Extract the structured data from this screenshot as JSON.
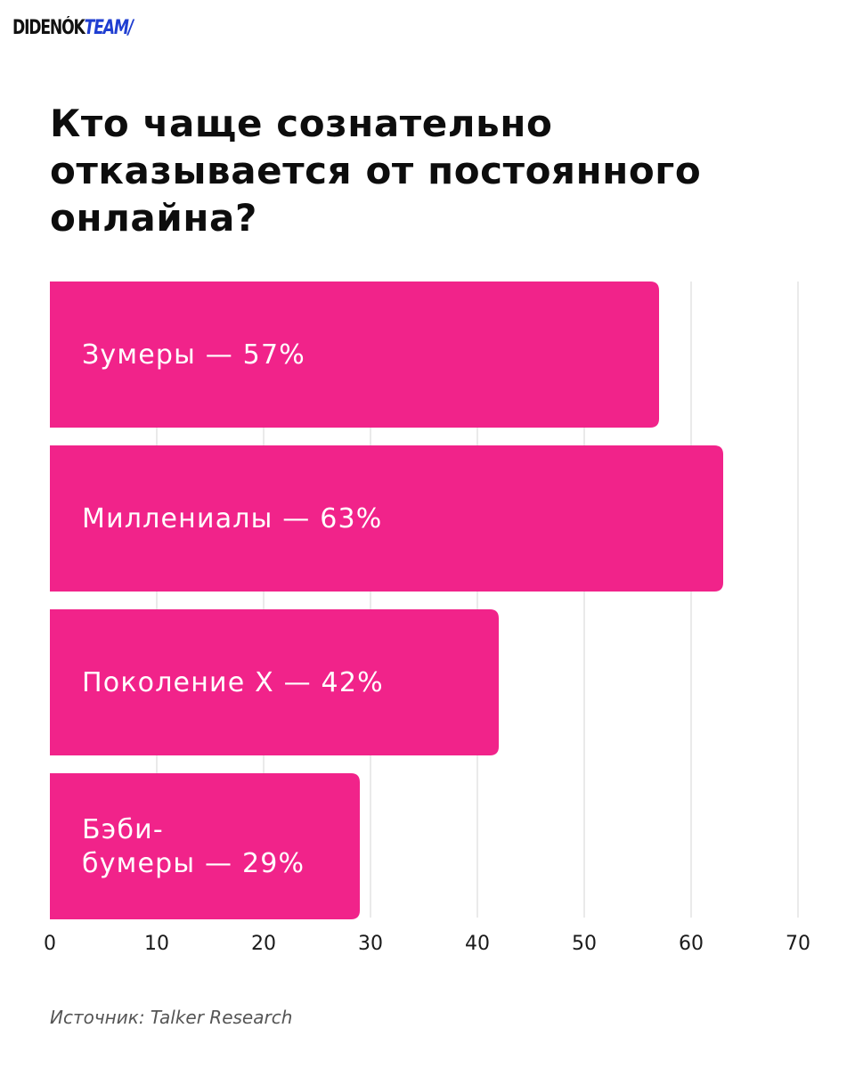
{
  "logo": {
    "part1": "DIDENÓK",
    "part2": "TEAM/"
  },
  "source": "Источник: Talker Research",
  "chart_data": {
    "type": "bar",
    "orientation": "horizontal",
    "title": "Кто чаще сознательно отказывается от постоянного онлайна?",
    "categories": [
      "Зумеры — 57%",
      "Миллениалы — 63%",
      "Поколение X — 42%",
      "Бэби-бумеры — 29%"
    ],
    "category_lines": [
      [
        "Зумеры — 57%"
      ],
      [
        "Миллениалы — 63%"
      ],
      [
        "Поколение X — 42%"
      ],
      [
        "Бэби-",
        "бумеры — 29%"
      ]
    ],
    "values": [
      57,
      63,
      42,
      29
    ],
    "xlim": [
      0,
      70
    ],
    "xticks": [
      0,
      10,
      20,
      30,
      40,
      50,
      60,
      70
    ],
    "grid": true,
    "bar_color": "#f1238a",
    "label_color": "#ffffff",
    "grid_color": "#e3e3e3"
  }
}
